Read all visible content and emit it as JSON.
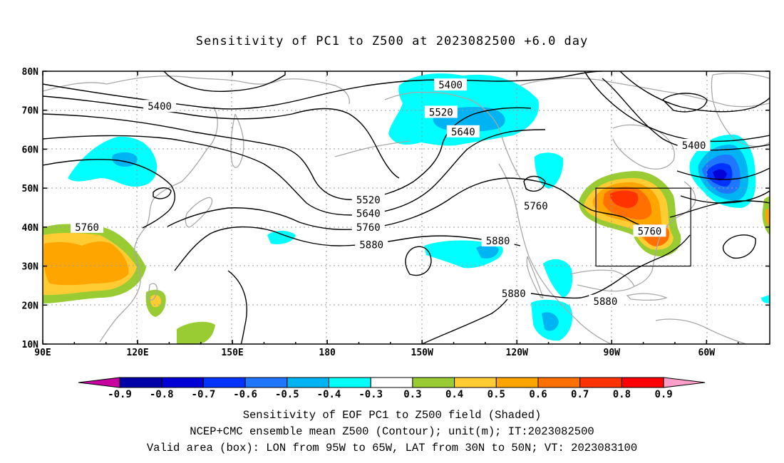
{
  "title": "Sensitivity of PC1 to Z500 at 2023082500 +6.0 day",
  "lat_ticks": [
    "80N",
    "70N",
    "60N",
    "50N",
    "40N",
    "30N",
    "20N",
    "10N"
  ],
  "lon_ticks": [
    "90E",
    "120E",
    "150E",
    "180",
    "150W",
    "120W",
    "90W",
    "60W"
  ],
  "contour_labels": [
    {
      "text": "5400",
      "lon": 127,
      "lat": 71
    },
    {
      "text": "5400",
      "lon": -141,
      "lat": 76.5
    },
    {
      "text": "5400",
      "lon": -64,
      "lat": 61
    },
    {
      "text": "5520",
      "lon": -144,
      "lat": 69.5
    },
    {
      "text": "5520",
      "lon": -167,
      "lat": 47
    },
    {
      "text": "5640",
      "lon": -137,
      "lat": 64.5
    },
    {
      "text": "5640",
      "lon": -167,
      "lat": 43.5
    },
    {
      "text": "5760",
      "lon": 104,
      "lat": 40
    },
    {
      "text": "5760",
      "lon": -167,
      "lat": 40
    },
    {
      "text": "5760",
      "lon": -114,
      "lat": 45.5
    },
    {
      "text": "5760",
      "lon": -78,
      "lat": 39
    },
    {
      "text": "5880",
      "lon": -166,
      "lat": 35.5
    },
    {
      "text": "5880",
      "lon": -126,
      "lat": 36.5
    },
    {
      "text": "5880",
      "lon": -121,
      "lat": 23
    },
    {
      "text": "5880",
      "lon": -92,
      "lat": 21
    }
  ],
  "valid_box": {
    "lon_west": -95,
    "lon_east": -65,
    "lat_south": 30,
    "lat_north": 50
  },
  "colorbar": {
    "labels": [
      "-0.9",
      "-0.8",
      "-0.7",
      "-0.6",
      "-0.5",
      "-0.4",
      "-0.3",
      "0.3",
      "0.4",
      "0.5",
      "0.6",
      "0.7",
      "0.8",
      "0.9"
    ],
    "colors": [
      "#0000a8",
      "#0000d6",
      "#0033ff",
      "#1f77ff",
      "#00b3f2",
      "#00ffff",
      "#ffffff",
      "#99cc33",
      "#ffcc33",
      "#ffa500",
      "#ff7000",
      "#ff3300",
      "#ff0000"
    ],
    "low_end_color": "#c800a0",
    "high_end_color": "#ff9ec8"
  },
  "captions": [
    "Sensitivity of EOF PC1 to Z500 field (Shaded)",
    "NCEP+CMC ensemble mean Z500 (Contour); unit(m); IT:2023082500",
    "Valid area (box): LON from 95W to 65W, LAT from 30N to 50N; VT: 2023083100"
  ]
}
